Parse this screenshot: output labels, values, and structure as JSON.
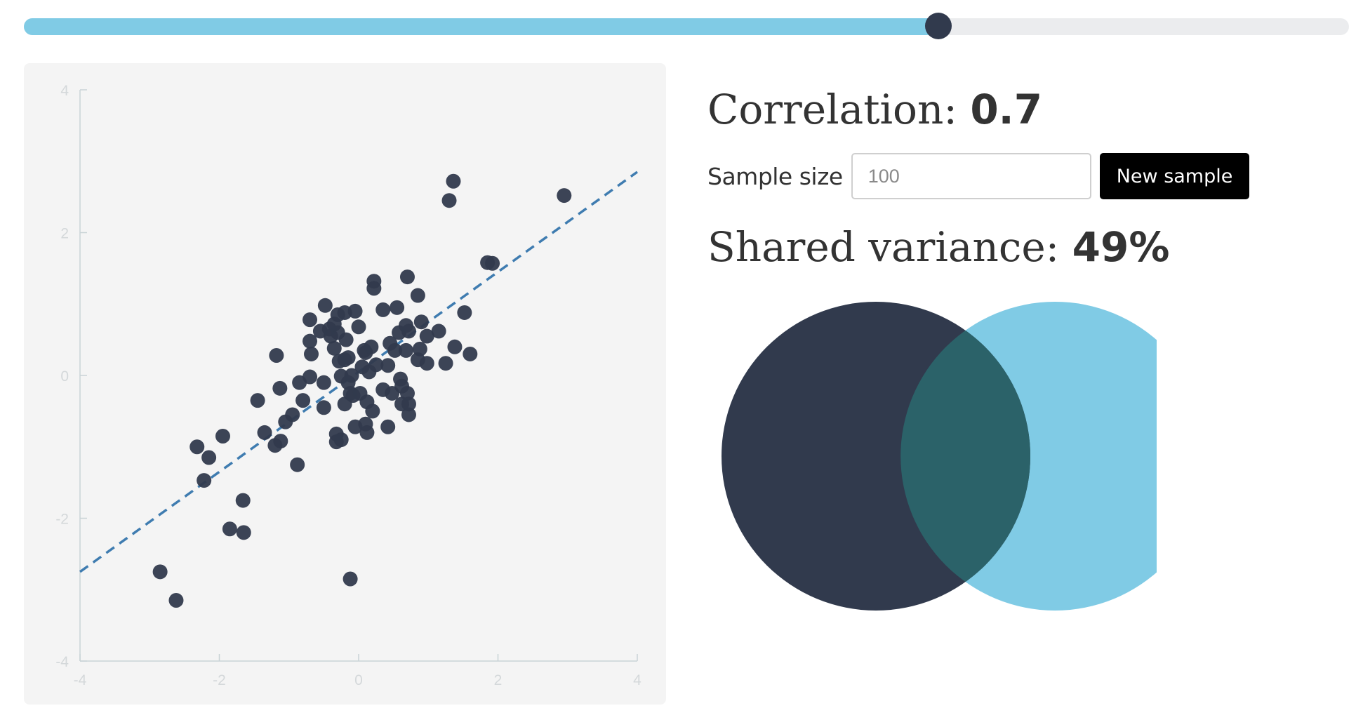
{
  "slider": {
    "value": 0.7,
    "min": 0,
    "max": 1,
    "fill_color": "#80cbe5",
    "track_color": "#ebecee",
    "thumb_color": "#313a4d"
  },
  "stats": {
    "correlation_label": "Correlation: ",
    "correlation_value": "0.7",
    "sample_size_label": "Sample size",
    "sample_size_placeholder": "100",
    "sample_size_value": "",
    "new_sample_label": "New sample",
    "shared_variance_label": "Shared variance: ",
    "shared_variance_value": "49%"
  },
  "venn": {
    "shared_fraction": 0.49,
    "left_color": "#313a4d",
    "right_color": "#80cbe5",
    "overlap_color": "#2b6269"
  },
  "chart_data": {
    "type": "scatter",
    "title": "",
    "xlabel": "",
    "ylabel": "",
    "xlim": [
      -4,
      4
    ],
    "ylim": [
      -4,
      4
    ],
    "xticks": [
      -4,
      -2,
      0,
      2,
      4
    ],
    "yticks": [
      -4,
      -2,
      0,
      2,
      4
    ],
    "xtick_labels": [
      "-4",
      "-2",
      "0",
      "2",
      "4"
    ],
    "ytick_labels": [
      "-4",
      "-2",
      "0",
      "2",
      "4"
    ],
    "grid": false,
    "point_color": "#313a4d",
    "regression_line": {
      "x": [
        -4,
        4
      ],
      "y": [
        -2.75,
        2.85
      ],
      "style": "dashed",
      "color": "#3f7cb0"
    },
    "points": [
      [
        -2.85,
        -2.75
      ],
      [
        -2.62,
        -3.15
      ],
      [
        -2.32,
        -1.0
      ],
      [
        -2.15,
        -1.15
      ],
      [
        -2.22,
        -1.47
      ],
      [
        -1.95,
        -0.85
      ],
      [
        -1.85,
        -2.15
      ],
      [
        -1.65,
        -2.2
      ],
      [
        -1.66,
        -1.75
      ],
      [
        -1.45,
        -0.35
      ],
      [
        -1.35,
        -0.8
      ],
      [
        -1.2,
        -0.98
      ],
      [
        -1.12,
        -0.92
      ],
      [
        -1.05,
        -0.65
      ],
      [
        -0.95,
        -0.55
      ],
      [
        -1.18,
        0.28
      ],
      [
        -1.13,
        -0.18
      ],
      [
        -0.88,
        -1.25
      ],
      [
        -0.85,
        -0.1
      ],
      [
        -0.8,
        -0.35
      ],
      [
        -0.7,
        -0.02
      ],
      [
        -0.68,
        0.3
      ],
      [
        -0.7,
        0.48
      ],
      [
        -0.7,
        0.78
      ],
      [
        -0.55,
        0.62
      ],
      [
        -0.48,
        0.98
      ],
      [
        -0.5,
        -0.45
      ],
      [
        -0.5,
        -0.1
      ],
      [
        -0.42,
        0.65
      ],
      [
        -0.4,
        0.55
      ],
      [
        -0.35,
        0.38
      ],
      [
        -0.3,
        0.85
      ],
      [
        -0.3,
        0.6
      ],
      [
        -0.28,
        0.2
      ],
      [
        -0.25,
        -0.01
      ],
      [
        -0.2,
        0.88
      ],
      [
        -0.18,
        0.5
      ],
      [
        -0.15,
        0.25
      ],
      [
        -0.2,
        0.22
      ],
      [
        -0.25,
        -0.9
      ],
      [
        -0.32,
        -0.82
      ],
      [
        -0.32,
        -0.93
      ],
      [
        -0.2,
        -0.4
      ],
      [
        -0.15,
        -0.1
      ],
      [
        -0.12,
        -0.25
      ],
      [
        -0.1,
        0.0
      ],
      [
        -0.08,
        -0.28
      ],
      [
        -0.05,
        -0.72
      ],
      [
        0.0,
        0.68
      ],
      [
        0.02,
        -0.25
      ],
      [
        0.05,
        0.12
      ],
      [
        0.08,
        0.35
      ],
      [
        0.1,
        0.32
      ],
      [
        0.12,
        -0.37
      ],
      [
        0.1,
        -0.68
      ],
      [
        0.12,
        -0.8
      ],
      [
        0.15,
        0.05
      ],
      [
        0.18,
        0.4
      ],
      [
        0.2,
        -0.5
      ],
      [
        0.22,
        1.22
      ],
      [
        0.22,
        1.32
      ],
      [
        0.35,
        0.92
      ],
      [
        0.35,
        -0.2
      ],
      [
        0.42,
        0.14
      ],
      [
        0.42,
        -0.72
      ],
      [
        0.48,
        -0.25
      ],
      [
        0.52,
        0.35
      ],
      [
        0.55,
        0.95
      ],
      [
        0.58,
        0.6
      ],
      [
        0.6,
        -0.05
      ],
      [
        0.62,
        -0.15
      ],
      [
        0.62,
        -0.4
      ],
      [
        0.68,
        0.7
      ],
      [
        0.68,
        0.35
      ],
      [
        0.7,
        -0.25
      ],
      [
        0.72,
        0.62
      ],
      [
        0.7,
        1.38
      ],
      [
        0.72,
        -0.55
      ],
      [
        0.72,
        -0.4
      ],
      [
        0.85,
        0.22
      ],
      [
        0.85,
        1.12
      ],
      [
        0.88,
        0.37
      ],
      [
        0.9,
        0.75
      ],
      [
        0.98,
        0.17
      ],
      [
        0.98,
        0.55
      ],
      [
        1.15,
        0.62
      ],
      [
        1.25,
        0.17
      ],
      [
        1.3,
        2.45
      ],
      [
        1.36,
        2.72
      ],
      [
        1.38,
        0.4
      ],
      [
        1.52,
        0.88
      ],
      [
        1.6,
        0.3
      ],
      [
        1.85,
        1.58
      ],
      [
        1.92,
        1.57
      ],
      [
        2.95,
        2.52
      ],
      [
        -0.12,
        -2.85
      ],
      [
        -0.35,
        0.72
      ],
      [
        -0.05,
        0.9
      ],
      [
        0.25,
        0.15
      ],
      [
        0.45,
        0.45
      ]
    ]
  }
}
